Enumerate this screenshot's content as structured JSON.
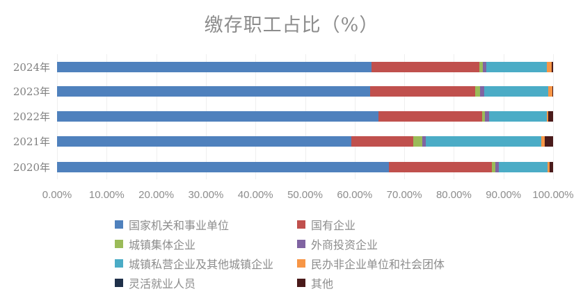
{
  "chart_data": {
    "type": "bar",
    "orientation": "horizontal",
    "stacked": "percent",
    "title": "缴存职工占比（%）",
    "xlabel": "",
    "ylabel": "",
    "xlim": [
      0,
      100
    ],
    "grid": true,
    "legend_position": "bottom",
    "x_ticks": [
      "0.00%",
      "10.00%",
      "20.00%",
      "30.00%",
      "40.00%",
      "50.00%",
      "60.00%",
      "70.00%",
      "80.00%",
      "90.00%",
      "100.00%"
    ],
    "categories": [
      "2024年",
      "2023年",
      "2022年",
      "2021年",
      "2020年"
    ],
    "series": [
      {
        "name": "国家机关和事业单位",
        "color": "#4F81BD",
        "values": [
          63.4,
          63.1,
          64.8,
          59.3,
          66.9
        ]
      },
      {
        "name": "国有企业",
        "color": "#C0504D",
        "values": [
          21.7,
          21.2,
          20.9,
          12.5,
          20.8
        ]
      },
      {
        "name": "城镇集体企业",
        "color": "#9BBB59",
        "values": [
          0.8,
          1.0,
          0.6,
          1.8,
          0.6
        ]
      },
      {
        "name": "外商投资企业",
        "color": "#8064A2",
        "values": [
          0.7,
          0.8,
          0.8,
          0.7,
          0.8
        ]
      },
      {
        "name": "城镇私营企业及其他城镇企业",
        "color": "#4BACC6",
        "values": [
          12.2,
          12.9,
          11.6,
          23.3,
          9.8
        ]
      },
      {
        "name": "民办非企业单位和社会团体",
        "color": "#F79646",
        "values": [
          0.9,
          0.8,
          0.3,
          0.7,
          0.4
        ]
      },
      {
        "name": "灵活就业人员",
        "color": "#1F3049",
        "values": [
          0.0,
          0.0,
          0.0,
          0.0,
          0.0
        ]
      },
      {
        "name": "其他",
        "color": "#4A1A1A",
        "values": [
          0.3,
          0.2,
          1.0,
          1.7,
          0.7
        ]
      }
    ]
  }
}
